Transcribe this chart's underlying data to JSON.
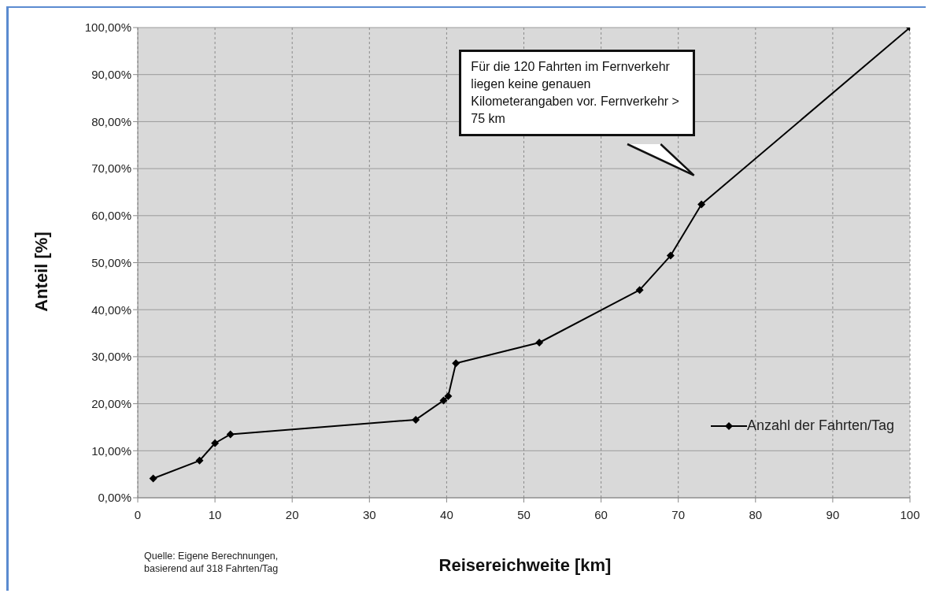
{
  "chart_data": {
    "type": "line",
    "xlabel": "Reisereichweite [km]",
    "ylabel": "Anteil [%]",
    "x": [
      2,
      8,
      10,
      12,
      36,
      39.6,
      40.2,
      41.2,
      52,
      65,
      69,
      73,
      100
    ],
    "series": [
      {
        "name": "Anzahl der Fahrten/Tag",
        "color": "#000000",
        "values": [
          4.1,
          7.9,
          11.6,
          13.5,
          16.6,
          20.7,
          21.6,
          28.6,
          33.0,
          44.2,
          51.5,
          62.4,
          100
        ]
      }
    ],
    "xlim": [
      0,
      100
    ],
    "xticks": [
      0,
      10,
      20,
      30,
      40,
      50,
      60,
      70,
      80,
      90,
      100
    ],
    "ylim": [
      0,
      100
    ],
    "yticks": [
      {
        "value": 0,
        "label": "0,00%"
      },
      {
        "value": 10,
        "label": "10,00%"
      },
      {
        "value": 20,
        "label": "20,00%"
      },
      {
        "value": 30,
        "label": "30,00%"
      },
      {
        "value": 40,
        "label": "40,00%"
      },
      {
        "value": 50,
        "label": "50,00%"
      },
      {
        "value": 60,
        "label": "60,00%"
      },
      {
        "value": 70,
        "label": "70,00%"
      },
      {
        "value": 80,
        "label": "80,00%"
      },
      {
        "value": 90,
        "label": "90,00%"
      },
      {
        "value": 100,
        "label": "100,00%"
      }
    ],
    "grid": true,
    "legend": "bottom right",
    "marker": "diamond",
    "line_style": "solid",
    "annotations": [
      "Für die 120 Fahrten im Fernverkehr liegen keine genauen Kilometerangaben vor. Fernverkehr > 75 km",
      "Quelle: Eigene Berechnungen, basierend auf 318 Fahrten/Tag"
    ]
  }
}
